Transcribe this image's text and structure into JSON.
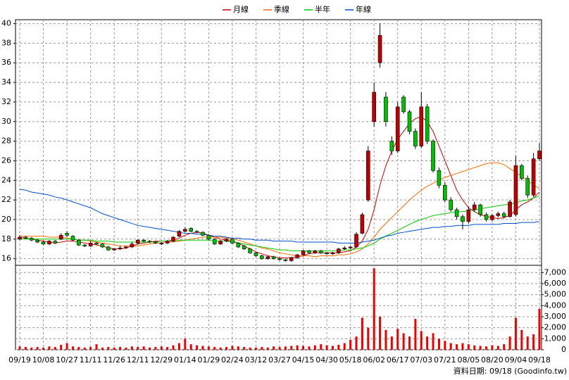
{
  "chart_data": [
    {
      "type": "candlestick",
      "categories": [
        "09/19",
        null,
        null,
        null,
        "10/08",
        null,
        null,
        null,
        "10/27",
        null,
        null,
        null,
        "11/11",
        null,
        null,
        null,
        "11/26",
        null,
        null,
        null,
        "12/11",
        null,
        null,
        null,
        "12/29",
        null,
        null,
        null,
        "01/14",
        null,
        null,
        null,
        "01/29",
        null,
        null,
        null,
        "02/24",
        null,
        null,
        null,
        "03/12",
        null,
        null,
        null,
        "03/27",
        null,
        null,
        null,
        "04/15",
        null,
        null,
        null,
        "04/30",
        null,
        null,
        null,
        "05/18",
        null,
        null,
        null,
        "06/02",
        null,
        null,
        null,
        "06/17",
        null,
        null,
        null,
        "07/03",
        null,
        null,
        null,
        "07/21",
        null,
        null,
        null,
        "08/05",
        null,
        null,
        null,
        "08/20",
        null,
        null,
        null,
        "09/04",
        null,
        null,
        null,
        "09/18"
      ],
      "open": [
        18.0,
        18.2,
        18.1,
        17.9,
        17.7,
        17.5,
        17.8,
        18.0,
        18.6,
        18.3,
        17.9,
        17.4,
        17.3,
        17.6,
        17.5,
        17.2,
        16.9,
        17.0,
        17.1,
        17.2,
        17.6,
        17.9,
        17.8,
        17.7,
        17.5,
        17.6,
        17.8,
        18.3,
        18.8,
        19.1,
        18.8,
        18.7,
        18.4,
        18.0,
        17.5,
        17.8,
        18.0,
        17.6,
        17.3,
        17.0,
        16.6,
        16.3,
        16.0,
        16.2,
        16.0,
        15.9,
        15.8,
        16.1,
        16.4,
        16.8,
        16.6,
        16.8,
        16.6,
        16.5,
        16.6,
        17.0,
        17.1,
        17.2,
        18.6,
        22.0,
        30.0,
        36.0,
        32.5,
        28.0,
        27.0,
        32.5,
        31.0,
        29.0,
        27.5,
        31.5,
        28.0,
        25.0,
        23.5,
        22.0,
        21.0,
        20.3,
        19.8,
        21.0,
        21.5,
        20.5,
        20.0,
        20.4,
        20.6,
        20.3,
        20.5,
        25.5,
        24.2,
        22.5,
        26.2
      ],
      "high": [
        18.4,
        18.3,
        18.2,
        18.0,
        17.8,
        17.9,
        17.9,
        18.6,
        18.8,
        18.4,
        18.0,
        17.5,
        17.8,
        17.7,
        17.6,
        17.3,
        17.1,
        17.3,
        17.3,
        17.7,
        18.0,
        18.0,
        17.9,
        17.8,
        17.7,
        17.9,
        18.3,
        18.9,
        19.2,
        19.2,
        18.9,
        18.8,
        18.5,
        18.1,
        17.9,
        18.1,
        18.1,
        17.7,
        17.4,
        17.1,
        16.7,
        16.4,
        16.3,
        16.3,
        16.1,
        16.0,
        16.2,
        16.5,
        16.9,
        16.9,
        16.9,
        16.9,
        16.7,
        16.7,
        17.1,
        17.3,
        17.3,
        18.7,
        20.7,
        27.5,
        34.0,
        40.0,
        33.0,
        28.5,
        32.0,
        32.7,
        31.2,
        29.3,
        33.0,
        31.8,
        28.2,
        25.3,
        23.8,
        22.3,
        21.2,
        20.5,
        21.3,
        21.8,
        21.6,
        20.7,
        20.6,
        20.8,
        20.8,
        22.0,
        26.5,
        25.7,
        24.5,
        26.8,
        27.8
      ],
      "low": [
        17.9,
        18.0,
        17.8,
        17.6,
        17.4,
        17.4,
        17.5,
        17.9,
        18.2,
        17.8,
        17.3,
        17.2,
        17.2,
        17.4,
        17.1,
        16.8,
        16.8,
        16.9,
        17.0,
        17.1,
        17.5,
        17.7,
        17.6,
        17.5,
        17.4,
        17.5,
        17.7,
        18.2,
        18.7,
        18.7,
        18.6,
        18.3,
        17.9,
        17.4,
        17.4,
        17.7,
        17.5,
        17.1,
        16.9,
        16.5,
        16.2,
        15.9,
        15.9,
        15.9,
        15.8,
        15.7,
        15.7,
        16.0,
        16.3,
        16.5,
        16.5,
        16.5,
        16.4,
        16.4,
        16.5,
        16.9,
        17.0,
        17.1,
        18.5,
        21.8,
        29.5,
        35.5,
        29.5,
        26.6,
        26.8,
        30.8,
        28.7,
        27.2,
        27.3,
        27.7,
        24.8,
        23.2,
        21.8,
        20.8,
        20.0,
        19.0,
        19.6,
        20.8,
        20.3,
        19.8,
        19.8,
        20.2,
        20.1,
        20.2,
        20.3,
        24.0,
        22.2,
        22.3,
        26.0
      ],
      "close": [
        18.2,
        18.1,
        17.9,
        17.7,
        17.5,
        17.8,
        17.6,
        18.4,
        18.4,
        17.9,
        17.4,
        17.3,
        17.6,
        17.5,
        17.2,
        16.9,
        17.0,
        17.1,
        17.2,
        17.5,
        17.9,
        17.8,
        17.7,
        17.6,
        17.6,
        17.8,
        18.2,
        18.8,
        19.0,
        18.8,
        18.7,
        18.4,
        18.0,
        17.5,
        17.8,
        18.0,
        17.6,
        17.2,
        17.0,
        16.6,
        16.3,
        16.0,
        16.2,
        16.0,
        15.9,
        15.8,
        16.1,
        16.4,
        16.8,
        16.6,
        16.8,
        16.6,
        16.5,
        16.6,
        17.0,
        17.1,
        17.2,
        18.5,
        20.5,
        27.0,
        33.0,
        38.8,
        30.0,
        27.0,
        31.5,
        31.0,
        29.0,
        27.5,
        31.5,
        28.0,
        25.0,
        23.5,
        22.0,
        21.0,
        20.3,
        19.8,
        21.0,
        21.5,
        20.5,
        20.0,
        20.4,
        20.6,
        20.3,
        21.8,
        25.5,
        24.2,
        22.5,
        26.2,
        27.0
      ],
      "up_color": "#c00000",
      "down_color": "#00c000",
      "lines": [
        {
          "name": "月線",
          "color": "#cc0000",
          "values": [
            18.2,
            18.1,
            18.0,
            17.9,
            17.8,
            17.7,
            17.6,
            17.7,
            17.8,
            17.8,
            17.7,
            17.6,
            17.5,
            17.4,
            17.3,
            17.1,
            17.0,
            17.0,
            17.1,
            17.3,
            17.5,
            17.6,
            17.7,
            17.8,
            17.8,
            17.8,
            17.9,
            18.1,
            18.4,
            18.6,
            18.7,
            18.6,
            18.4,
            18.2,
            18.0,
            17.9,
            17.8,
            17.6,
            17.3,
            17.0,
            16.7,
            16.5,
            16.3,
            16.2,
            16.1,
            16.1,
            16.1,
            16.2,
            16.3,
            16.5,
            16.6,
            16.6,
            16.6,
            16.6,
            16.6,
            16.7,
            16.8,
            17.2,
            17.8,
            19.0,
            21.0,
            23.5,
            25.5,
            27.0,
            28.2,
            29.0,
            29.8,
            30.3,
            30.5,
            30.0,
            29.0,
            27.5,
            26.0,
            24.5,
            23.0,
            22.0,
            21.2,
            20.8,
            20.5,
            20.3,
            20.2,
            20.1,
            20.2,
            20.4,
            21.0,
            21.5,
            21.8,
            22.2,
            22.8
          ]
        },
        {
          "name": "季線",
          "color": "#ff6a00",
          "values": [
            18.3,
            18.3,
            18.3,
            18.3,
            18.3,
            18.2,
            18.2,
            18.2,
            18.1,
            18.0,
            17.9,
            17.9,
            17.8,
            17.7,
            17.6,
            17.5,
            17.4,
            17.3,
            17.3,
            17.3,
            17.3,
            17.4,
            17.5,
            17.6,
            17.6,
            17.7,
            17.7,
            17.8,
            17.9,
            18.0,
            18.1,
            18.2,
            18.2,
            18.2,
            18.2,
            18.1,
            18.0,
            17.9,
            17.7,
            17.5,
            17.3,
            17.1,
            17.0,
            16.8,
            16.6,
            16.5,
            16.4,
            16.3,
            16.3,
            16.3,
            16.2,
            16.3,
            16.3,
            16.3,
            16.4,
            16.4,
            16.5,
            16.7,
            17.0,
            17.5,
            18.2,
            19.0,
            19.6,
            20.2,
            20.8,
            21.4,
            22.0,
            22.5,
            23.0,
            23.4,
            23.7,
            24.0,
            24.3,
            24.5,
            24.7,
            24.9,
            25.1,
            25.3,
            25.5,
            25.7,
            25.8,
            25.8,
            25.6,
            25.2,
            24.8,
            24.4,
            24.0,
            23.5,
            23.2
          ]
        },
        {
          "name": "半年",
          "color": "#00cc00",
          "values": [
            18.0,
            18.0,
            18.0,
            18.0,
            18.0,
            18.0,
            18.0,
            18.0,
            18.0,
            18.0,
            17.9,
            17.9,
            17.9,
            17.8,
            17.8,
            17.8,
            17.7,
            17.7,
            17.7,
            17.7,
            17.7,
            17.7,
            17.7,
            17.7,
            17.8,
            17.8,
            17.8,
            17.9,
            17.9,
            17.9,
            17.9,
            17.9,
            17.9,
            17.8,
            17.8,
            17.8,
            17.7,
            17.6,
            17.5,
            17.4,
            17.3,
            17.2,
            17.1,
            17.0,
            16.9,
            16.9,
            16.8,
            16.8,
            16.8,
            16.8,
            16.8,
            16.8,
            16.8,
            16.8,
            16.8,
            16.9,
            16.9,
            17.0,
            17.1,
            17.3,
            17.6,
            18.0,
            18.3,
            18.6,
            18.9,
            19.2,
            19.5,
            19.8,
            20.0,
            20.2,
            20.4,
            20.5,
            20.6,
            20.7,
            20.8,
            20.8,
            20.9,
            21.0,
            21.1,
            21.2,
            21.3,
            21.4,
            21.5,
            21.6,
            21.7,
            21.9,
            22.0,
            22.2,
            22.4
          ]
        },
        {
          "name": "年線",
          "color": "#0050cc",
          "values": [
            23.1,
            23.0,
            22.8,
            22.7,
            22.6,
            22.5,
            22.3,
            22.2,
            22.0,
            21.8,
            21.6,
            21.4,
            21.2,
            20.9,
            20.6,
            20.4,
            20.2,
            20.0,
            19.8,
            19.6,
            19.4,
            19.3,
            19.2,
            19.1,
            19.0,
            18.9,
            18.8,
            18.7,
            18.6,
            18.6,
            18.5,
            18.5,
            18.4,
            18.3,
            18.3,
            18.2,
            18.1,
            18.1,
            18.0,
            18.0,
            17.9,
            17.9,
            17.9,
            17.8,
            17.8,
            17.8,
            17.8,
            17.7,
            17.7,
            17.7,
            17.7,
            17.7,
            17.7,
            17.7,
            17.6,
            17.6,
            17.6,
            17.6,
            17.7,
            17.8,
            17.9,
            18.1,
            18.3,
            18.4,
            18.6,
            18.7,
            18.8,
            18.9,
            19.0,
            19.1,
            19.2,
            19.2,
            19.3,
            19.3,
            19.4,
            19.4,
            19.4,
            19.5,
            19.5,
            19.5,
            19.5,
            19.5,
            19.6,
            19.6,
            19.6,
            19.7,
            19.7,
            19.7,
            19.8
          ]
        }
      ],
      "ylim": [
        15.4,
        40.4
      ],
      "yticks": [
        16,
        18,
        20,
        22,
        24,
        26,
        28,
        30,
        32,
        34,
        36,
        38,
        40
      ],
      "grid": true,
      "source": "資料日期: 09/18 (Goodinfo.tw)"
    },
    {
      "type": "bar",
      "color": "#ee0000",
      "values": [
        300,
        250,
        200,
        250,
        200,
        300,
        250,
        450,
        600,
        300,
        250,
        200,
        250,
        500,
        200,
        250,
        200,
        250,
        200,
        300,
        250,
        300,
        200,
        250,
        300,
        250,
        400,
        600,
        1000,
        500,
        400,
        350,
        300,
        250,
        200,
        250,
        350,
        300,
        250,
        200,
        200,
        250,
        200,
        300,
        250,
        300,
        350,
        400,
        350,
        300,
        400,
        500,
        400,
        350,
        450,
        600,
        900,
        1200,
        2900,
        2000,
        7400,
        3000,
        1800,
        1200,
        1900,
        1500,
        1200,
        2800,
        1700,
        1200,
        1500,
        1000,
        800,
        600,
        500,
        600,
        500,
        400,
        350,
        300,
        400,
        350,
        500,
        1200,
        2900,
        1800,
        1200,
        1400,
        3700
      ],
      "ylim": [
        0,
        7600
      ],
      "yticks": [
        0,
        {
          "value": 1000,
          "label": "1,000"
        },
        {
          "value": 2000,
          "label": "2,000"
        },
        {
          "value": 3000,
          "label": "3,000"
        },
        {
          "value": 4000,
          "label": "4,000"
        },
        {
          "value": 5000,
          "label": "5,000"
        },
        {
          "value": 6000,
          "label": "6,000"
        },
        {
          "value": 7000,
          "label": "7,000"
        }
      ],
      "grid": true
    }
  ]
}
